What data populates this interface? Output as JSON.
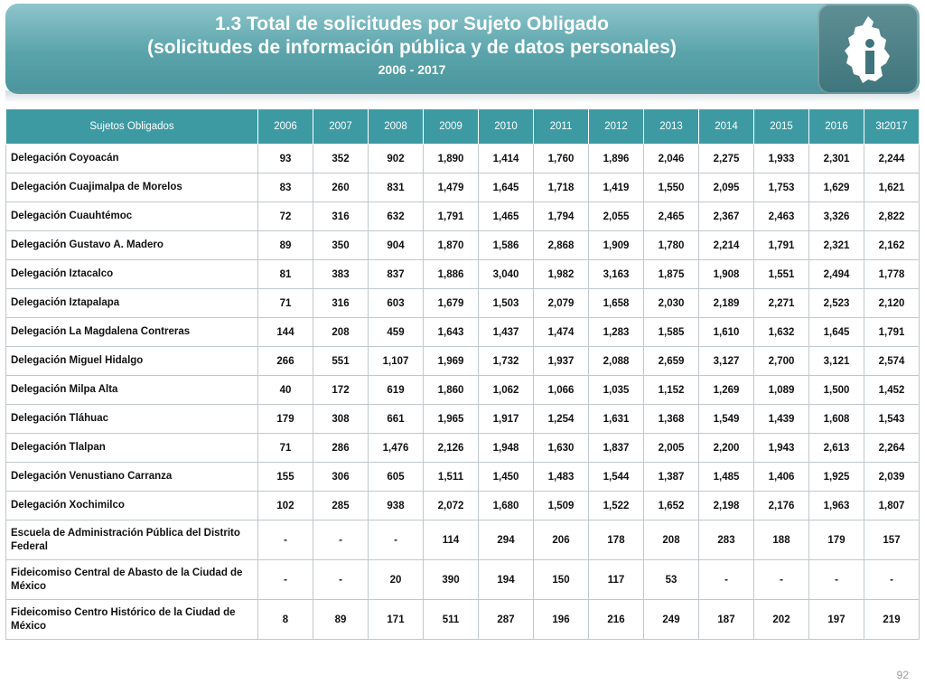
{
  "header": {
    "title_line1": "1.3 Total de solicitudes por Sujeto Obligado",
    "title_line2": "(solicitudes de información pública y de datos personales)",
    "period": "2006 - 2017"
  },
  "logo": {
    "icon": "cdmx-info-logo-icon"
  },
  "table": {
    "headers": [
      "Sujetos Obligados",
      "2006",
      "2007",
      "2008",
      "2009",
      "2010",
      "2011",
      "2012",
      "2013",
      "2014",
      "2015",
      "2016",
      "3t2017"
    ],
    "rows": [
      {
        "name": "Delegación Coyoacán",
        "values": [
          "93",
          "352",
          "902",
          "1,890",
          "1,414",
          "1,760",
          "1,896",
          "2,046",
          "2,275",
          "1,933",
          "2,301",
          "2,244"
        ]
      },
      {
        "name": "Delegación Cuajimalpa de Morelos",
        "values": [
          "83",
          "260",
          "831",
          "1,479",
          "1,645",
          "1,718",
          "1,419",
          "1,550",
          "2,095",
          "1,753",
          "1,629",
          "1,621"
        ]
      },
      {
        "name": "Delegación Cuauhtémoc",
        "values": [
          "72",
          "316",
          "632",
          "1,791",
          "1,465",
          "1,794",
          "2,055",
          "2,465",
          "2,367",
          "2,463",
          "3,326",
          "2,822"
        ]
      },
      {
        "name": "Delegación Gustavo A. Madero",
        "values": [
          "89",
          "350",
          "904",
          "1,870",
          "1,586",
          "2,868",
          "1,909",
          "1,780",
          "2,214",
          "1,791",
          "2,321",
          "2,162"
        ]
      },
      {
        "name": "Delegación Iztacalco",
        "values": [
          "81",
          "383",
          "837",
          "1,886",
          "3,040",
          "1,982",
          "3,163",
          "1,875",
          "1,908",
          "1,551",
          "2,494",
          "1,778"
        ]
      },
      {
        "name": "Delegación Iztapalapa",
        "values": [
          "71",
          "316",
          "603",
          "1,679",
          "1,503",
          "2,079",
          "1,658",
          "2,030",
          "2,189",
          "2,271",
          "2,523",
          "2,120"
        ]
      },
      {
        "name": "Delegación La Magdalena Contreras",
        "values": [
          "144",
          "208",
          "459",
          "1,643",
          "1,437",
          "1,474",
          "1,283",
          "1,585",
          "1,610",
          "1,632",
          "1,645",
          "1,791"
        ]
      },
      {
        "name": "Delegación Miguel Hidalgo",
        "values": [
          "266",
          "551",
          "1,107",
          "1,969",
          "1,732",
          "1,937",
          "2,088",
          "2,659",
          "3,127",
          "2,700",
          "3,121",
          "2,574"
        ]
      },
      {
        "name": "Delegación Milpa Alta",
        "values": [
          "40",
          "172",
          "619",
          "1,860",
          "1,062",
          "1,066",
          "1,035",
          "1,152",
          "1,269",
          "1,089",
          "1,500",
          "1,452"
        ]
      },
      {
        "name": "Delegación Tláhuac",
        "values": [
          "179",
          "308",
          "661",
          "1,965",
          "1,917",
          "1,254",
          "1,631",
          "1,368",
          "1,549",
          "1,439",
          "1,608",
          "1,543"
        ]
      },
      {
        "name": "Delegación Tlalpan",
        "values": [
          "71",
          "286",
          "1,476",
          "2,126",
          "1,948",
          "1,630",
          "1,837",
          "2,005",
          "2,200",
          "1,943",
          "2,613",
          "2,264"
        ]
      },
      {
        "name": "Delegación Venustiano Carranza",
        "values": [
          "155",
          "306",
          "605",
          "1,511",
          "1,450",
          "1,483",
          "1,544",
          "1,387",
          "1,485",
          "1,406",
          "1,925",
          "2,039"
        ]
      },
      {
        "name": "Delegación Xochimilco",
        "values": [
          "102",
          "285",
          "938",
          "2,072",
          "1,680",
          "1,509",
          "1,522",
          "1,652",
          "2,198",
          "2,176",
          "1,963",
          "1,807"
        ]
      },
      {
        "name": "Escuela de Administración Pública del Distrito Federal",
        "values": [
          "-",
          "-",
          "-",
          "114",
          "294",
          "206",
          "178",
          "208",
          "283",
          "188",
          "179",
          "157"
        ]
      },
      {
        "name": "Fideicomiso Central de Abasto de la Ciudad de México",
        "values": [
          "-",
          "-",
          "20",
          "390",
          "194",
          "150",
          "117",
          "53",
          "-",
          "-",
          "-",
          "-"
        ]
      },
      {
        "name": "Fideicomiso Centro Histórico de la Ciudad de México",
        "values": [
          "8",
          "89",
          "171",
          "511",
          "287",
          "196",
          "216",
          "249",
          "187",
          "202",
          "197",
          "219"
        ]
      }
    ]
  },
  "page_number": "92"
}
